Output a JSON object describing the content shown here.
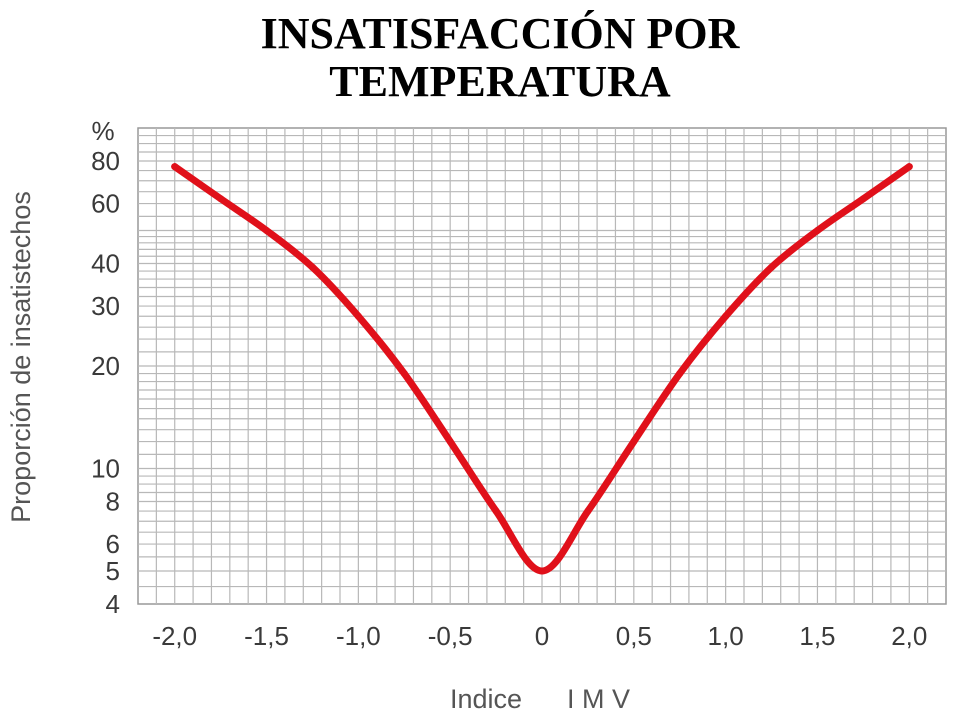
{
  "chart_data": {
    "type": "line",
    "title": [
      "INSATISFACCIÓN POR",
      "TEMPERATURA"
    ],
    "xlabel": "Indice      I M V",
    "ylabel": "Proporción de insatistechos",
    "y_unit": "%",
    "y_scale": "log",
    "xlim": [
      -2.2,
      2.2
    ],
    "ylim": [
      4,
      100
    ],
    "x_ticks": [
      -2.0,
      -1.5,
      -1.0,
      -0.5,
      0,
      0.5,
      1.0,
      1.5,
      2.0
    ],
    "x_tick_labels": [
      "-2,0",
      "-1,5",
      "-1,0",
      "-0,5",
      "0",
      "0,5",
      "1,0",
      "1,5",
      "2,0"
    ],
    "y_ticks": [
      4,
      5,
      6,
      8,
      10,
      20,
      30,
      40,
      60,
      80
    ],
    "y_tick_labels": [
      "4",
      "5",
      "6",
      "8",
      "10",
      "20",
      "30",
      "40",
      "60",
      "80"
    ],
    "grid": true,
    "line_color": "#e0101a",
    "series": [
      {
        "x": [
          -2.0,
          -1.75,
          -1.5,
          -1.25,
          -1.0,
          -0.75,
          -0.5,
          -0.25,
          0,
          0.25,
          0.5,
          0.75,
          1.0,
          1.25,
          1.5,
          1.75,
          2.0
        ],
        "y": [
          77,
          62,
          50,
          39,
          28,
          19,
          12,
          7.5,
          5,
          7.5,
          12,
          19,
          28,
          39,
          50,
          62,
          77
        ]
      }
    ]
  }
}
